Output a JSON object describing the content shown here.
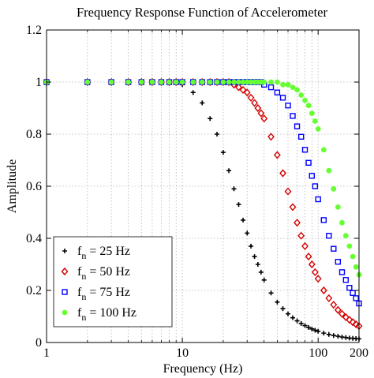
{
  "chart_data": {
    "type": "scatter",
    "title": "Frequency Response Function of Accelerometer",
    "xlabel": "Frequency (Hz)",
    "ylabel": "Amplitude",
    "xscale": "log",
    "xlim": [
      1,
      200
    ],
    "ylim": [
      0,
      1.2
    ],
    "x_ticks": [
      {
        "value": 1,
        "label": "1"
      },
      {
        "value": 10,
        "label": "10"
      },
      {
        "value": 100,
        "label": "100"
      },
      {
        "value": 200,
        "label": "200"
      }
    ],
    "y_ticks": [
      {
        "value": 0,
        "label": "0"
      },
      {
        "value": 0.2,
        "label": "0.2"
      },
      {
        "value": 0.4,
        "label": "0.4"
      },
      {
        "value": 0.6,
        "label": "0.6"
      },
      {
        "value": 0.8,
        "label": "0.8"
      },
      {
        "value": 1,
        "label": "1"
      },
      {
        "value": 1.2,
        "label": "1.2"
      }
    ],
    "grid": true,
    "legend_position": "bottom-left",
    "x": [
      1,
      2,
      3,
      4,
      5,
      6,
      7,
      8,
      9,
      10,
      12,
      14,
      16,
      18,
      20,
      22,
      24,
      26,
      28,
      30,
      32,
      34,
      36,
      38,
      40,
      45,
      50,
      55,
      60,
      65,
      70,
      75,
      80,
      85,
      90,
      95,
      100,
      110,
      120,
      130,
      140,
      150,
      160,
      170,
      180,
      190,
      200
    ],
    "series": [
      {
        "name": "f_n = 25 Hz",
        "legend_main": "f",
        "legend_sub": "n",
        "legend_suffix": " = 25 Hz",
        "marker": "plus",
        "color": "#000000",
        "values": [
          1.0,
          1.0,
          1.0,
          1.0,
          1.0,
          1.0,
          1.0,
          1.0,
          1.0,
          0.99,
          0.96,
          0.92,
          0.86,
          0.8,
          0.73,
          0.66,
          0.59,
          0.53,
          0.47,
          0.42,
          0.37,
          0.33,
          0.3,
          0.27,
          0.24,
          0.19,
          0.155,
          0.13,
          0.11,
          0.095,
          0.083,
          0.073,
          0.065,
          0.058,
          0.052,
          0.047,
          0.043,
          0.036,
          0.031,
          0.027,
          0.024,
          0.021,
          0.019,
          0.017,
          0.016,
          0.015,
          0.014
        ]
      },
      {
        "name": "f_n = 50 Hz",
        "legend_main": "f",
        "legend_sub": "n",
        "legend_suffix": " = 50 Hz",
        "marker": "diamond",
        "color": "#d40000",
        "values": [
          1.0,
          1.0,
          1.0,
          1.0,
          1.0,
          1.0,
          1.0,
          1.0,
          1.0,
          1.0,
          1.0,
          1.0,
          1.0,
          1.0,
          1.0,
          1.0,
          0.99,
          0.98,
          0.97,
          0.96,
          0.94,
          0.92,
          0.9,
          0.88,
          0.86,
          0.79,
          0.72,
          0.65,
          0.58,
          0.52,
          0.46,
          0.41,
          0.37,
          0.33,
          0.3,
          0.27,
          0.245,
          0.2,
          0.17,
          0.145,
          0.125,
          0.11,
          0.097,
          0.087,
          0.078,
          0.07,
          0.063
        ]
      },
      {
        "name": "f_n = 75 Hz",
        "legend_main": "f",
        "legend_sub": "n",
        "legend_suffix": " = 75 Hz",
        "marker": "square",
        "color": "#0000ff",
        "values": [
          1.0,
          1.0,
          1.0,
          1.0,
          1.0,
          1.0,
          1.0,
          1.0,
          1.0,
          1.0,
          1.0,
          1.0,
          1.0,
          1.0,
          1.0,
          1.0,
          1.0,
          1.0,
          1.0,
          1.0,
          1.0,
          1.0,
          1.0,
          1.0,
          0.99,
          0.98,
          0.96,
          0.94,
          0.91,
          0.87,
          0.83,
          0.79,
          0.74,
          0.69,
          0.64,
          0.6,
          0.55,
          0.47,
          0.41,
          0.36,
          0.31,
          0.27,
          0.24,
          0.21,
          0.19,
          0.17,
          0.15
        ]
      },
      {
        "name": "f_n = 100 Hz",
        "legend_main": "f",
        "legend_sub": "n",
        "legend_suffix": " = 100 Hz",
        "marker": "dot",
        "color": "#66ff33",
        "values": [
          1.0,
          1.0,
          1.0,
          1.0,
          1.0,
          1.0,
          1.0,
          1.0,
          1.0,
          1.0,
          1.0,
          1.0,
          1.0,
          1.0,
          1.0,
          1.0,
          1.0,
          1.0,
          1.0,
          1.0,
          1.0,
          1.0,
          1.0,
          1.0,
          1.0,
          1.0,
          1.0,
          0.99,
          0.99,
          0.98,
          0.97,
          0.95,
          0.93,
          0.91,
          0.88,
          0.85,
          0.82,
          0.74,
          0.66,
          0.59,
          0.52,
          0.46,
          0.41,
          0.37,
          0.33,
          0.29,
          0.26
        ]
      }
    ]
  }
}
